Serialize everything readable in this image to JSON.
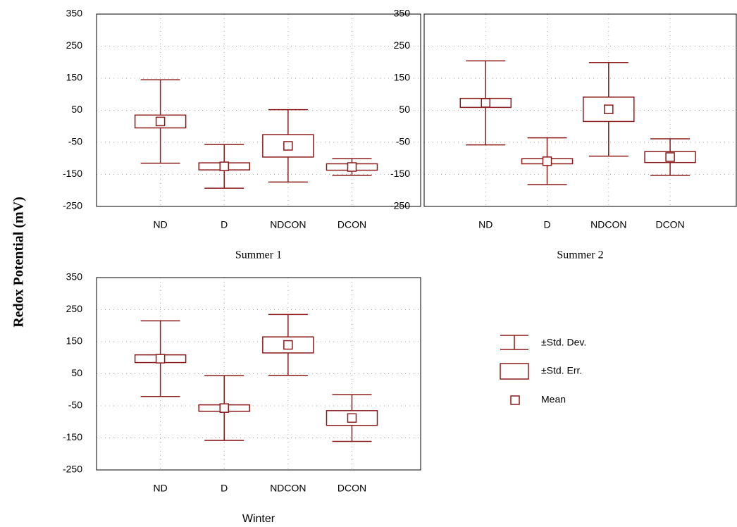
{
  "y_label": "Redox Potential (mV)",
  "legend": {
    "sd": "±Std. Dev.",
    "se": "±Std. Err.",
    "mean": "Mean"
  },
  "chart_data": [
    {
      "type": "box",
      "xlabel": "Summer 1",
      "categories": [
        "ND",
        "D",
        "NDCON",
        "DCON"
      ],
      "mean": [
        15,
        -125,
        -61,
        -127
      ],
      "se": [
        20,
        11,
        35,
        10
      ],
      "sd": [
        130,
        68,
        113,
        26
      ],
      "ylim": [
        -250,
        350
      ],
      "yticks": [
        -250,
        -150,
        -50,
        50,
        150,
        250,
        350
      ],
      "color": "#8b1a1a",
      "grid": true
    },
    {
      "type": "box",
      "xlabel": "Summer 2",
      "categories": [
        "ND",
        "D",
        "NDCON",
        "DCON"
      ],
      "mean": [
        73,
        -109,
        53,
        -96
      ],
      "se": [
        14,
        8,
        38,
        17
      ],
      "sd": [
        131,
        73,
        146,
        57
      ],
      "ylim": [
        -250,
        350
      ],
      "yticks": [
        -250,
        -150,
        -50,
        50,
        150,
        250,
        350
      ],
      "color": "#8b1a1a",
      "grid": true
    },
    {
      "type": "box",
      "xlabel": "Winter",
      "categories": [
        "ND",
        "D",
        "NDCON",
        "DCON"
      ],
      "mean": [
        97,
        -57,
        140,
        -88
      ],
      "se": [
        12,
        10,
        25,
        23
      ],
      "sd": [
        118,
        101,
        95,
        73
      ],
      "ylim": [
        -250,
        350
      ],
      "yticks": [
        -250,
        -150,
        -50,
        50,
        150,
        250,
        350
      ],
      "color": "#8b1a1a",
      "grid": true
    }
  ]
}
